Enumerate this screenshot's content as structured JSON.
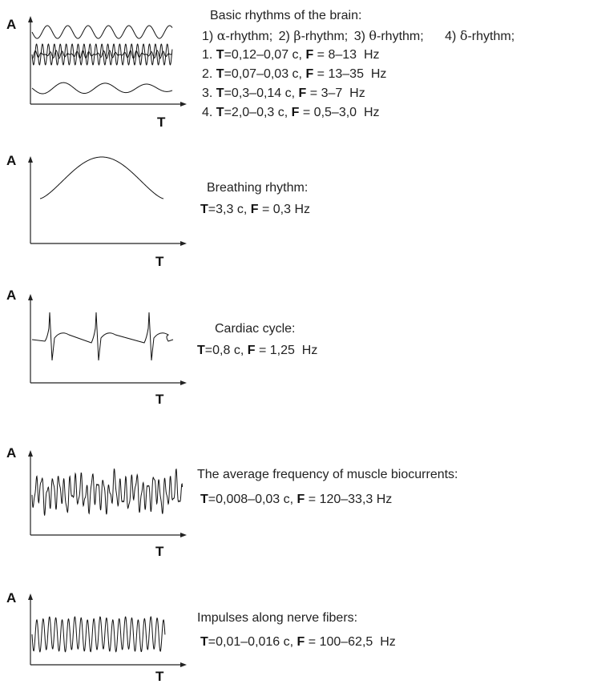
{
  "axes": {
    "y_label": "A",
    "x_label": "T"
  },
  "brain": {
    "title": "Basic rhythms of the brain:",
    "rhythms": [
      {
        "num": "1)",
        "greek": "α",
        "name": "-rhythm;"
      },
      {
        "num": "2)",
        "greek": "β",
        "name": "-rhythm;"
      },
      {
        "num": "3)",
        "greek": "θ",
        "name": "-rhythm;"
      },
      {
        "num": "4)",
        "greek": "δ",
        "name": "-rhythm;"
      }
    ],
    "params": [
      {
        "idx": "1.",
        "T": "=0,12–0,07 c,",
        "F": " = 8–13",
        "unit": "Hz"
      },
      {
        "idx": "2.",
        "T": "=0,07–0,03 c,",
        "F": " = 13–35",
        "unit": "Hz"
      },
      {
        "idx": "3.",
        "T": "=0,3–0,14 c,",
        "F": " = 3–7",
        "unit": "Hz"
      },
      {
        "idx": "4.",
        "T": "=2,0–0,3 c,",
        "F": " = 0,5–3,0",
        "unit": "Hz"
      }
    ]
  },
  "breathing": {
    "title": "Breathing rhythm:",
    "T": "=3,3 c,",
    "F": " = 0,3",
    "unit": "Hz"
  },
  "cardiac": {
    "title": "Cardiac cycle:",
    "T": "=0,8 c,",
    "F": " = 1,25",
    "unit": "Hz"
  },
  "muscle": {
    "title": "The average frequency of muscle biocurrents:",
    "T": "=0,008–0,03 c,",
    "F": " = 120–33,3",
    "unit": "Hz"
  },
  "nerve": {
    "title": "Impulses along nerve fibers:",
    "T": "=0,01–0,016 c,",
    "F": " = 100–62,5",
    "unit": "Hz"
  },
  "letters": {
    "T": "T",
    "F": "F"
  },
  "colors": {
    "ink": "#111111",
    "axis": "#222222"
  }
}
